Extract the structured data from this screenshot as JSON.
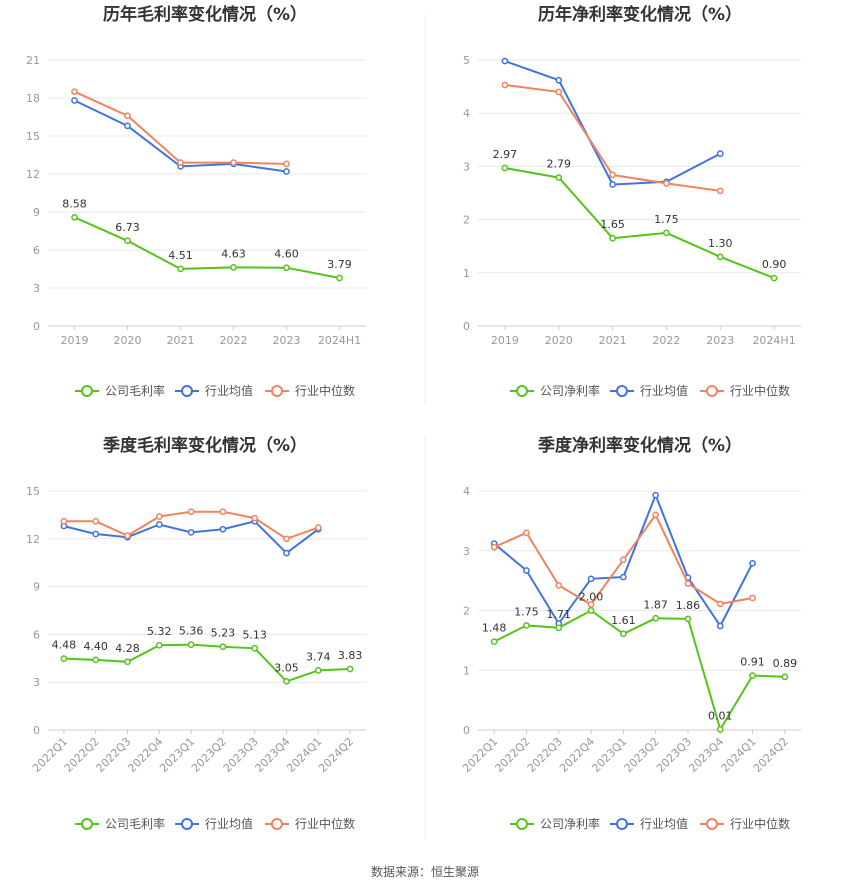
{
  "source": "数据来源：恒生聚源",
  "legend_colors": {
    "company": "#52c41a",
    "avg": "#3f74e0",
    "median": "#f0845c"
  },
  "chart_data": [
    {
      "type": "line",
      "title": "历年毛利率变化情况（%）",
      "categories": [
        "2019",
        "2020",
        "2021",
        "2022",
        "2023",
        "2024H1"
      ],
      "yticks": [
        "0",
        "3",
        "6",
        "9",
        "12",
        "15",
        "18",
        "21"
      ],
      "ylim": [
        0,
        21
      ],
      "grid": true,
      "legend_position": "bottom",
      "series": [
        {
          "name": "公司毛利率",
          "key": "company",
          "values": [
            8.58,
            6.73,
            4.51,
            4.63,
            4.6,
            3.79
          ],
          "labels": [
            "8.58",
            "6.73",
            "4.51",
            "4.63",
            "4.60",
            "3.79"
          ]
        },
        {
          "name": "行业均值",
          "key": "avg",
          "values": [
            17.8,
            15.8,
            12.6,
            12.8,
            12.2,
            null
          ]
        },
        {
          "name": "行业中位数",
          "key": "median",
          "values": [
            18.5,
            16.6,
            12.9,
            12.9,
            12.8,
            null
          ]
        }
      ]
    },
    {
      "type": "line",
      "title": "历年净利率变化情况（%）",
      "categories": [
        "2019",
        "2020",
        "2021",
        "2022",
        "2023",
        "2024H1"
      ],
      "yticks": [
        "0",
        "1",
        "2",
        "3",
        "4",
        "5"
      ],
      "ylim": [
        0,
        5
      ],
      "grid": true,
      "legend_position": "bottom",
      "series": [
        {
          "name": "公司净利率",
          "key": "company",
          "values": [
            2.97,
            2.79,
            1.65,
            1.75,
            1.3,
            0.9
          ],
          "labels": [
            "2.97",
            "2.79",
            "1.65",
            "1.75",
            "1.30",
            "0.90"
          ]
        },
        {
          "name": "行业均值",
          "key": "avg",
          "values": [
            4.98,
            4.62,
            2.66,
            2.71,
            3.24,
            null
          ]
        },
        {
          "name": "行业中位数",
          "key": "median",
          "values": [
            4.53,
            4.4,
            2.84,
            2.68,
            2.54,
            null
          ]
        }
      ]
    },
    {
      "type": "line",
      "title": "季度毛利率变化情况（%）",
      "categories": [
        "2022Q1",
        "2022Q2",
        "2022Q3",
        "2022Q4",
        "2023Q1",
        "2023Q2",
        "2023Q3",
        "2023Q4",
        "2024Q1",
        "2024Q2"
      ],
      "yticks": [
        "0",
        "3",
        "6",
        "9",
        "12",
        "15"
      ],
      "ylim": [
        0,
        15
      ],
      "grid": true,
      "legend_position": "bottom",
      "series": [
        {
          "name": "公司毛利率",
          "key": "company",
          "values": [
            4.48,
            4.4,
            4.28,
            5.32,
            5.36,
            5.23,
            5.13,
            3.05,
            3.74,
            3.83
          ],
          "labels": [
            "4.48",
            "4.40",
            "4.28",
            "5.32",
            "5.36",
            "5.23",
            "5.13",
            "3.05",
            "3.74",
            "3.83"
          ]
        },
        {
          "name": "行业均值",
          "key": "avg",
          "values": [
            12.8,
            12.3,
            12.1,
            12.9,
            12.4,
            12.6,
            13.1,
            11.1,
            12.6,
            null
          ]
        },
        {
          "name": "行业中位数",
          "key": "median",
          "values": [
            13.1,
            13.1,
            12.2,
            13.4,
            13.7,
            13.7,
            13.3,
            12.0,
            12.7,
            null
          ]
        }
      ]
    },
    {
      "type": "line",
      "title": "季度净利率变化情况（%）",
      "categories": [
        "2022Q1",
        "2022Q2",
        "2022Q3",
        "2022Q4",
        "2023Q1",
        "2023Q2",
        "2023Q3",
        "2023Q4",
        "2024Q1",
        "2024Q2"
      ],
      "yticks": [
        "0",
        "1",
        "2",
        "3",
        "4"
      ],
      "ylim": [
        0,
        4
      ],
      "grid": true,
      "legend_position": "bottom",
      "series": [
        {
          "name": "公司净利率",
          "key": "company",
          "values": [
            1.48,
            1.75,
            1.71,
            2.0,
            1.61,
            1.87,
            1.86,
            0.01,
            0.91,
            0.89
          ],
          "labels": [
            "1.48",
            "1.75",
            "1.71",
            "2.00",
            "1.61",
            "1.87",
            "1.86",
            "0.01",
            "0.91",
            "0.89"
          ]
        },
        {
          "name": "行业均值",
          "key": "avg",
          "values": [
            3.12,
            2.67,
            1.78,
            2.53,
            2.56,
            3.93,
            2.55,
            1.74,
            2.79,
            null
          ]
        },
        {
          "name": "行业中位数",
          "key": "median",
          "values": [
            3.06,
            3.3,
            2.42,
            2.1,
            2.85,
            3.6,
            2.45,
            2.11,
            2.21,
            null
          ]
        }
      ]
    }
  ]
}
